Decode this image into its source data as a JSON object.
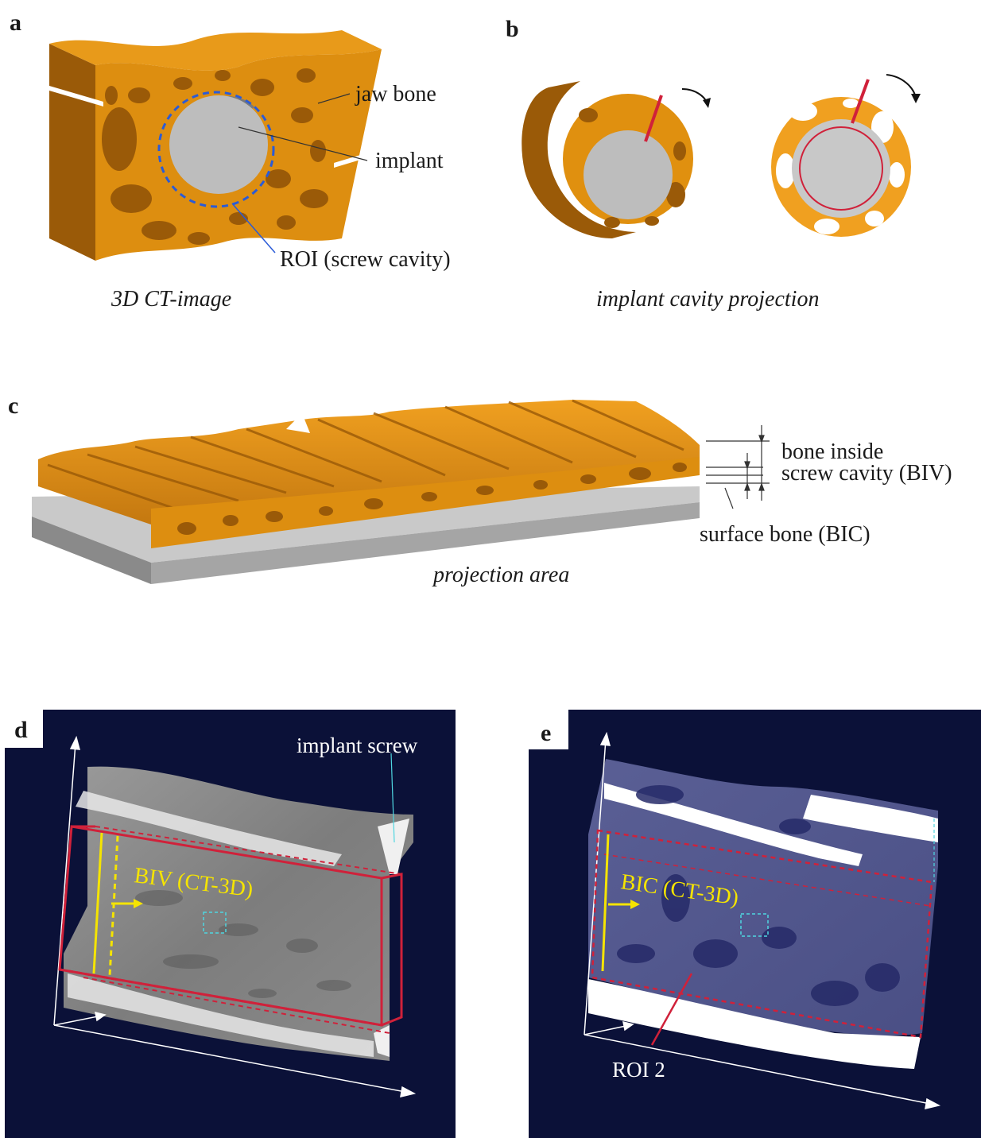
{
  "panels": {
    "a": {
      "letter": "a",
      "labels": {
        "jaw_bone": "jaw bone",
        "implant": "implant",
        "roi": "ROI (screw cavity)"
      },
      "caption": "3D CT-image"
    },
    "b": {
      "letter": "b",
      "caption": "implant cavity projection"
    },
    "c": {
      "letter": "c",
      "labels": {
        "biv_line1": "bone inside",
        "biv_line2": "screw cavity (BIV)",
        "bic": "surface bone (BIC)"
      },
      "caption": "projection area"
    },
    "d": {
      "letter": "d",
      "labels": {
        "screw": "implant screw",
        "biv": "BIV (CT-3D)"
      }
    },
    "e": {
      "letter": "e",
      "labels": {
        "bic": "BIC (CT-3D)",
        "roi2": "ROI 2"
      }
    }
  },
  "colors": {
    "bone": "#e0900f",
    "bone_dark": "#a8620a",
    "implant": "#b8b8b8",
    "ct_background": "#0b1138",
    "roi_red": "#d0213a",
    "annotation_yellow": "#f5e400"
  }
}
